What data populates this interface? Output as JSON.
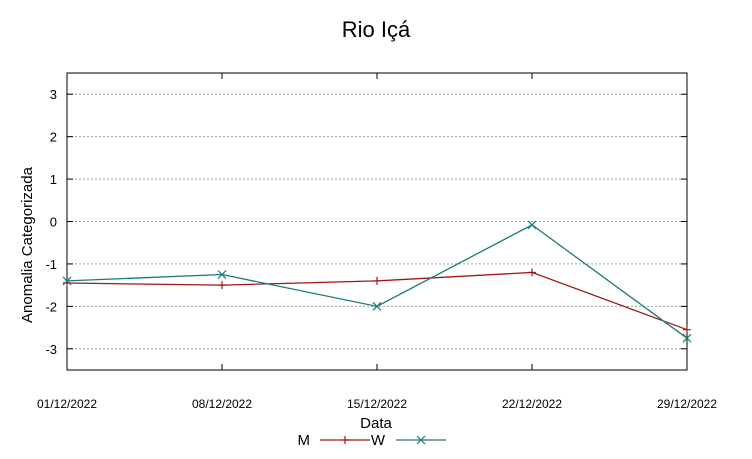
{
  "chart_data": {
    "type": "line",
    "title": "Rio Içá",
    "xlabel": "Data",
    "ylabel": "Anomalia Categorizada",
    "x": [
      "01/12/2022",
      "08/12/2022",
      "15/12/2022",
      "22/12/2022",
      "29/12/2022"
    ],
    "ylim": [
      -3.5,
      3.5
    ],
    "yticks": [
      3,
      2,
      1,
      0,
      -1,
      -2,
      -3
    ],
    "grid": true,
    "legend_position": "bottom-center",
    "series": [
      {
        "name": "M",
        "color": "#a01818",
        "marker": "plus",
        "values": [
          -1.45,
          -1.5,
          -1.4,
          -1.2,
          -2.55
        ]
      },
      {
        "name": "W",
        "color": "#1a7a7a",
        "marker": "cross",
        "values": [
          -1.4,
          -1.25,
          -2.0,
          -0.08,
          -2.75
        ]
      }
    ]
  }
}
